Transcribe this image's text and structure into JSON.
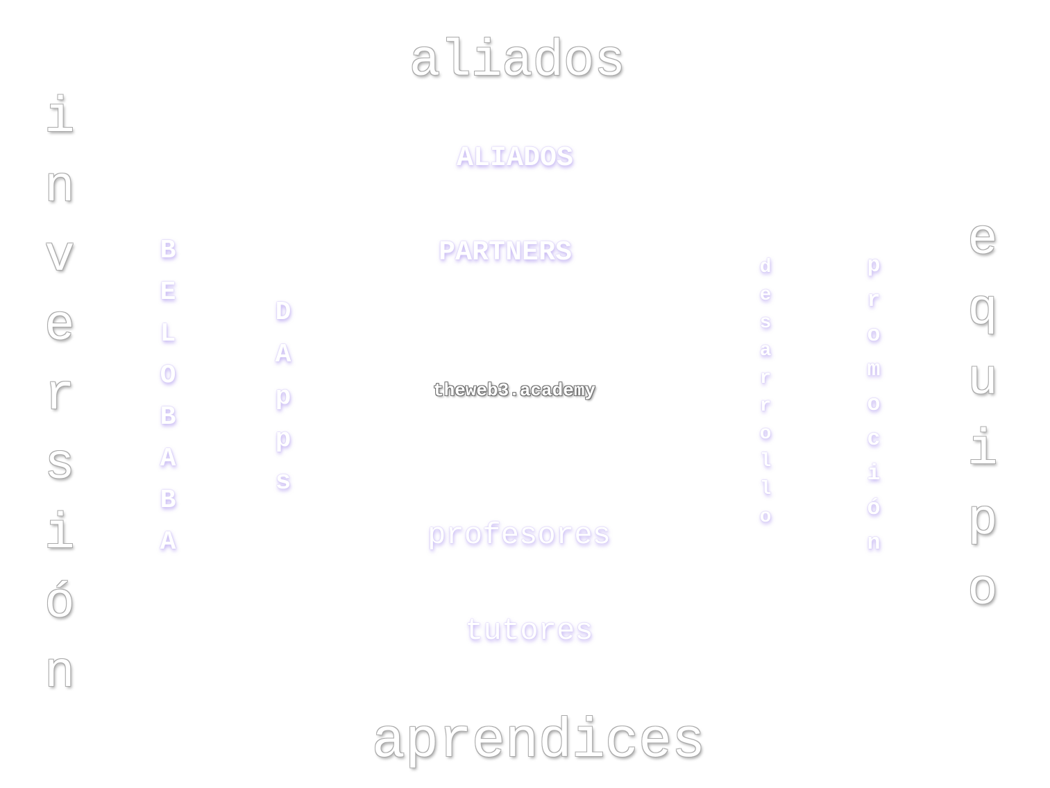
{
  "words": {
    "top": "aliados",
    "bottom": "aprendices",
    "left": "inversión",
    "right": "equipo",
    "center": "theweb3.academy",
    "inner_top_1": "ALIADOS",
    "inner_top_2": "PARTNERS",
    "inner_bottom_1": "profesores",
    "inner_bottom_2": "tutores",
    "inner_left_1": "BELOBABA",
    "inner_left_2": "DApps",
    "inner_right_1": "desarrollo",
    "inner_right_2": "promoción"
  },
  "colors": {
    "background": "#ffffff",
    "text_fill": "#ffffff",
    "outline_gray": "#a9a9a9",
    "glow_violet": "#c9bdf2",
    "outline_dark": "#6d6d6d"
  }
}
